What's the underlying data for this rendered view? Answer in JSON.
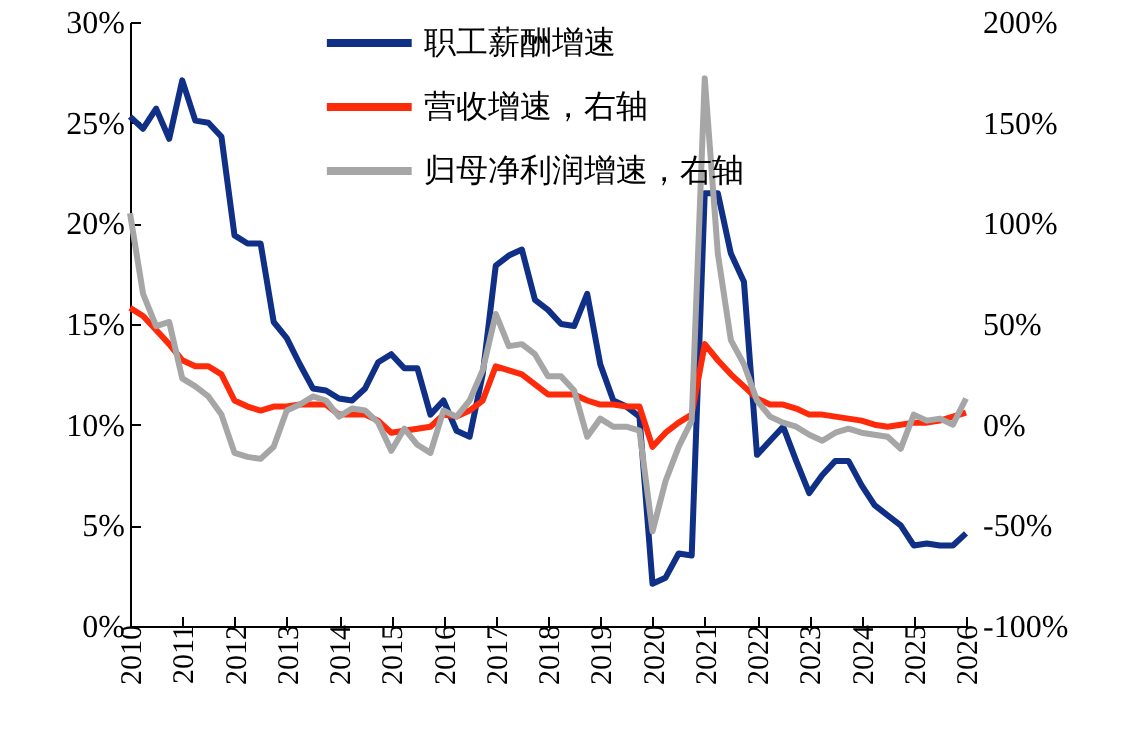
{
  "chart_data": {
    "type": "line",
    "x": [
      2010,
      2010.25,
      2010.5,
      2010.75,
      2011,
      2011.25,
      2011.5,
      2011.75,
      2012,
      2012.25,
      2012.5,
      2012.75,
      2013,
      2013.25,
      2013.5,
      2013.75,
      2014,
      2014.25,
      2014.5,
      2014.75,
      2015,
      2015.25,
      2015.5,
      2015.75,
      2016,
      2016.25,
      2016.5,
      2016.75,
      2017,
      2017.25,
      2017.5,
      2017.75,
      2018,
      2018.25,
      2018.5,
      2018.75,
      2019,
      2019.25,
      2019.5,
      2019.75,
      2020,
      2020.25,
      2020.5,
      2020.75,
      2021,
      2021.25,
      2021.5,
      2021.75,
      2022,
      2022.25,
      2022.5,
      2022.75,
      2023,
      2023.25,
      2023.5,
      2023.75,
      2024,
      2024.25,
      2024.5,
      2024.75,
      2025,
      2025.25,
      2025.5,
      2025.75,
      2026
    ],
    "series": [
      {
        "name": "职工薪酬增速",
        "color": "#102f86",
        "values": [
          25.3,
          24.7,
          25.7,
          24.2,
          27.1,
          25.1,
          25.0,
          24.3,
          19.4,
          19.0,
          19.0,
          15.1,
          14.3,
          13.0,
          11.8,
          11.7,
          11.3,
          11.2,
          11.8,
          13.1,
          13.5,
          12.8,
          12.8,
          10.5,
          11.2,
          9.7,
          9.4,
          12.5,
          17.9,
          18.4,
          18.7,
          16.2,
          15.7,
          15.0,
          14.9,
          16.5,
          13.0,
          11.2,
          10.9,
          10.4,
          2.1,
          2.4,
          3.6,
          3.5,
          21.5,
          21.5,
          18.5,
          17.1,
          8.5,
          9.2,
          9.9,
          8.2,
          6.6,
          7.5,
          8.2,
          8.2,
          7.0,
          6.0,
          5.5,
          5.0,
          4.0,
          4.1,
          4.0,
          4.0,
          4.6
        ]
      },
      {
        "name": "营收增速，右轴",
        "color": "#ff2a0a",
        "axis": "y2",
        "values": [
          58,
          54,
          47,
          40,
          32,
          29,
          29,
          25,
          12,
          9,
          7,
          9,
          9,
          10,
          10,
          10,
          5,
          5,
          5,
          2,
          -4,
          -3,
          -2,
          -1,
          5,
          4,
          7,
          12,
          29,
          27,
          25,
          20,
          15,
          15,
          15,
          12,
          10,
          10,
          9,
          9,
          -11,
          -4,
          1,
          5,
          40,
          32,
          25,
          19,
          13,
          10,
          10,
          8,
          5,
          5,
          4,
          3,
          2,
          0,
          -1,
          0,
          1,
          1,
          2,
          4,
          6
        ]
      },
      {
        "name": "归母净利润增速，右轴",
        "color": "#a6a6a6",
        "axis": "y2",
        "values": [
          105,
          65,
          49,
          51,
          23,
          19,
          14,
          5,
          -14,
          -16,
          -17,
          -11,
          7,
          10,
          14,
          12,
          4,
          8,
          7,
          1,
          -13,
          -2,
          -10,
          -14,
          7,
          4,
          12,
          27,
          55,
          39,
          40,
          35,
          24,
          24,
          17,
          -6,
          3,
          -1,
          -1,
          -3,
          -53,
          -28,
          -11,
          2,
          172,
          85,
          42,
          30,
          12,
          4,
          1,
          -1,
          -5,
          -8,
          -4,
          -2,
          -4,
          -5,
          -6,
          -12,
          5,
          2,
          3,
          0,
          13
        ]
      }
    ],
    "xlim": [
      2010,
      2026
    ],
    "xticks": [
      2010,
      2011,
      2012,
      2013,
      2014,
      2015,
      2016,
      2017,
      2018,
      2019,
      2020,
      2021,
      2022,
      2023,
      2024,
      2025,
      2026
    ],
    "ylim": [
      0,
      30
    ],
    "yticks": [
      {
        "value": 0,
        "label": "0%"
      },
      {
        "value": 5,
        "label": "5%"
      },
      {
        "value": 10,
        "label": "10%"
      },
      {
        "value": 15,
        "label": "15%"
      },
      {
        "value": 20,
        "label": "20%"
      },
      {
        "value": 25,
        "label": "25%"
      },
      {
        "value": 30,
        "label": "30%"
      }
    ],
    "y2lim": [
      -100,
      200
    ],
    "y2ticks": [
      {
        "value": -100,
        "label": "-100%"
      },
      {
        "value": -50,
        "label": "-50%"
      },
      {
        "value": 0,
        "label": "0%"
      },
      {
        "value": 50,
        "label": "50%"
      },
      {
        "value": 100,
        "label": "100%"
      },
      {
        "value": 150,
        "label": "150%"
      },
      {
        "value": 200,
        "label": "200%"
      }
    ],
    "legend": "top"
  }
}
